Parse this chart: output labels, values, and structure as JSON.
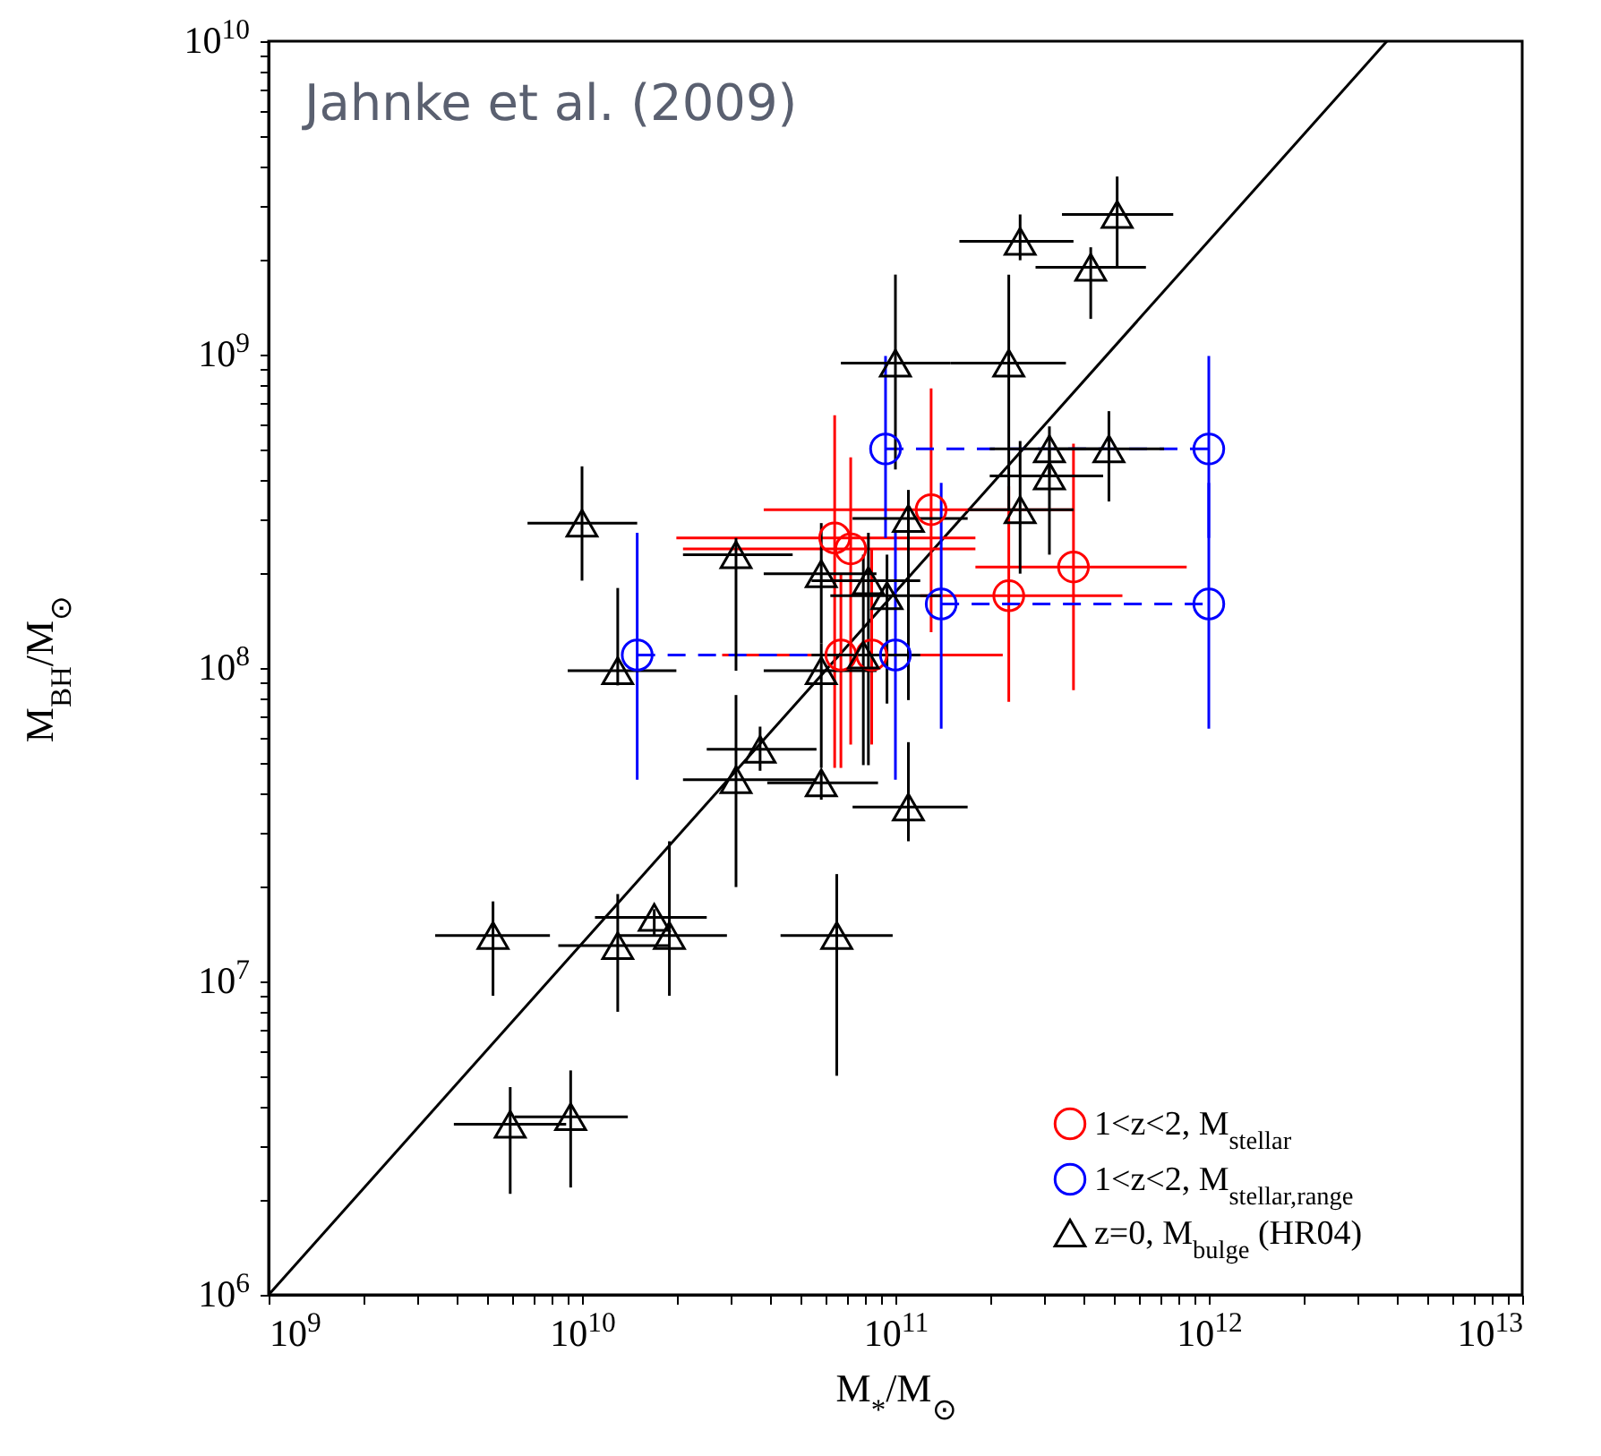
{
  "chart_data": {
    "type": "scatter",
    "annotations": [
      "Jahnke et al. (2009)"
    ],
    "xlabel": "M$_{*}$/M$_{⊙}$",
    "ylabel": "M$_{BH}$/M$_{⊙}$",
    "log": "xy",
    "xlim": [
      1000000000.0,
      10000000000000.0
    ],
    "ylim": [
      1000000.0,
      10000000000.0
    ],
    "xticks": [
      {
        "value": 1000000000.0,
        "label": "10$^{9}$"
      },
      {
        "value": 2000000000.0,
        "label": null
      },
      {
        "value": 3000000000.0,
        "label": null
      },
      {
        "value": 4000000000.0,
        "label": null
      },
      {
        "value": 5000000000.0,
        "label": null
      },
      {
        "value": 6000000000.0,
        "label": null
      },
      {
        "value": 7000000000.0,
        "label": null
      },
      {
        "value": 8000000000.0,
        "label": null
      },
      {
        "value": 9000000000.0,
        "label": null
      },
      {
        "value": 10000000000.0,
        "label": "10$^{10}$"
      },
      {
        "value": 20000000000.0,
        "label": null
      },
      {
        "value": 30000000000.0,
        "label": null
      },
      {
        "value": 40000000000.0,
        "label": null
      },
      {
        "value": 50000000000.0,
        "label": null
      },
      {
        "value": 60000000000.0,
        "label": null
      },
      {
        "value": 70000000000.0,
        "label": null
      },
      {
        "value": 80000000000.0,
        "label": null
      },
      {
        "value": 90000000000.0,
        "label": null
      },
      {
        "value": 100000000000.0,
        "label": "10$^{11}$"
      },
      {
        "value": 200000000000.0,
        "label": null
      },
      {
        "value": 300000000000.0,
        "label": null
      },
      {
        "value": 400000000000.0,
        "label": null
      },
      {
        "value": 500000000000.0,
        "label": null
      },
      {
        "value": 600000000000.0,
        "label": null
      },
      {
        "value": 700000000000.0,
        "label": null
      },
      {
        "value": 800000000000.0,
        "label": null
      },
      {
        "value": 900000000000.0,
        "label": null
      },
      {
        "value": 1000000000000.0,
        "label": "10$^{12}$"
      },
      {
        "value": 2000000000000.0,
        "label": null
      },
      {
        "value": 3000000000000.0,
        "label": null
      },
      {
        "value": 4000000000000.0,
        "label": null
      },
      {
        "value": 5000000000000.0,
        "label": null
      },
      {
        "value": 6000000000000.0,
        "label": null
      },
      {
        "value": 7000000000000.0,
        "label": null
      },
      {
        "value": 8000000000000.0,
        "label": null
      },
      {
        "value": 9000000000000.0,
        "label": null
      },
      {
        "value": 10000000000000.0,
        "label": "10$^{13}$"
      }
    ],
    "yticks": [
      {
        "value": 1000000.0,
        "label": "10$^{6}$"
      },
      {
        "value": 2000000.0,
        "label": null
      },
      {
        "value": 3000000.0,
        "label": null
      },
      {
        "value": 4000000.0,
        "label": null
      },
      {
        "value": 5000000.0,
        "label": null
      },
      {
        "value": 6000000.0,
        "label": null
      },
      {
        "value": 7000000.0,
        "label": null
      },
      {
        "value": 8000000.0,
        "label": null
      },
      {
        "value": 9000000.0,
        "label": null
      },
      {
        "value": 10000000.0,
        "label": "10$^{7}$"
      },
      {
        "value": 20000000.0,
        "label": null
      },
      {
        "value": 30000000.0,
        "label": null
      },
      {
        "value": 40000000.0,
        "label": null
      },
      {
        "value": 50000000.0,
        "label": null
      },
      {
        "value": 60000000.0,
        "label": null
      },
      {
        "value": 70000000.0,
        "label": null
      },
      {
        "value": 80000000.0,
        "label": null
      },
      {
        "value": 90000000.0,
        "label": null
      },
      {
        "value": 100000000.0,
        "label": "10$^{8}$"
      },
      {
        "value": 200000000.0,
        "label": null
      },
      {
        "value": 300000000.0,
        "label": null
      },
      {
        "value": 400000000.0,
        "label": null
      },
      {
        "value": 500000000.0,
        "label": null
      },
      {
        "value": 600000000.0,
        "label": null
      },
      {
        "value": 700000000.0,
        "label": null
      },
      {
        "value": 800000000.0,
        "label": null
      },
      {
        "value": 900000000.0,
        "label": null
      },
      {
        "value": 1000000000.0,
        "label": "10$^{9}$"
      },
      {
        "value": 2000000000.0,
        "label": null
      },
      {
        "value": 3000000000.0,
        "label": null
      },
      {
        "value": 4000000000.0,
        "label": null
      },
      {
        "value": 5000000000.0,
        "label": null
      },
      {
        "value": 6000000000.0,
        "label": null
      },
      {
        "value": 7000000000.0,
        "label": null
      },
      {
        "value": 8000000000.0,
        "label": null
      },
      {
        "value": 9000000000.0,
        "label": null
      },
      {
        "value": 10000000000.0,
        "label": "10$^{10}$"
      }
    ],
    "legend": "bottom right",
    "grid": false,
    "series": [
      {
        "type": "line",
        "color": "#000000",
        "marker": "none",
        "line_style": "solid",
        "x": [
          1000000000.0,
          3700000000000.0
        ],
        "values": [
          1000000.0,
          10000000000.0
        ]
      },
      {
        "name": "1<z<2, M$_{stellar}$",
        "color": "#ff0000",
        "marker": "circle",
        "x": [
          130000000000.0,
          64000000000.0,
          72000000000.0,
          370000000000.0,
          230000000000.0,
          84000000000.0,
          67000000000.0
        ],
        "values": [
          320000000.0,
          260000000.0,
          240000000.0,
          210000000.0,
          170000000.0,
          110000000.0,
          110000000.0
        ],
        "errors": [
          [
            130000000.0,
            780000000.0
          ],
          [
            48000000.0,
            640000000.0
          ],
          [
            57000000.0,
            470000000.0
          ],
          [
            85000000.0,
            520000000.0
          ],
          [
            78000000.0,
            380000000.0
          ],
          [
            57000000.0,
            240000000.0
          ],
          [
            48000000.0,
            200000000.0
          ]
        ],
        "xerrors": [
          [
            38000000000.0,
            370000000000.0
          ],
          [
            20000000000.0,
            180000000000.0
          ],
          [
            21000000000.0,
            180000000000.0
          ],
          [
            180000000000.0,
            850000000000.0
          ],
          [
            120000000000.0,
            530000000000.0
          ],
          [
            30000000000.0,
            220000000000.0
          ],
          [
            28000000000.0,
            170000000000.0
          ]
        ]
      },
      {
        "type": "line",
        "name": "1<z<2, M$_{stellar,range}$",
        "color": "#0000ff",
        "marker": "circle",
        "line_style": "dashed",
        "x": [
          93000000000.0,
          1000000000000.0,
          null,
          140000000000.0,
          1000000000000.0,
          null,
          15000000000.0,
          100000000000.0
        ],
        "values": [
          500000000.0,
          500000000.0,
          null,
          160000000.0,
          160000000.0,
          null,
          110000000.0,
          110000000.0
        ],
        "errors": [
          [
            260000000.0,
            990000000.0
          ],
          [
            260000000.0,
            990000000.0
          ],
          null,
          [
            64000000.0,
            390000000.0
          ],
          [
            64000000.0,
            390000000.0
          ],
          null,
          [
            44000000.0,
            270000000.0
          ],
          [
            44000000.0,
            270000000.0
          ]
        ]
      },
      {
        "name": "z=0, M$_{bulge}$ (HR04)",
        "color": "#000000",
        "marker": "triangle",
        "x": [
          510000000000.0,
          250000000000.0,
          420000000000.0,
          100000000000.0,
          230000000000.0,
          310000000000.0,
          480000000000.0,
          310000000000.0,
          250000000000.0,
          110000000000.0,
          10000000000.0,
          31000000000.0,
          58000000000.0,
          82000000000.0,
          94000000000.0,
          13000000000.0,
          58000000000.0,
          79000000000.0,
          37000000000.0,
          31000000000.0,
          58000000000.0,
          110000000000.0,
          5200000000.0,
          13000000000.0,
          17000000000.0,
          19000000000.0,
          65000000000.0,
          5900000000.0,
          9200000000.0
        ],
        "values": [
          2800000000.0,
          2300000000.0,
          1900000000.0,
          940000000.0,
          940000000.0,
          500000000.0,
          500000000.0,
          410000000.0,
          320000000.0,
          300000000.0,
          290000000.0,
          230000000.0,
          200000000.0,
          190000000.0,
          170000000.0,
          98000000.0,
          98000000.0,
          110000000.0,
          55000000.0,
          44000000.0,
          43000000.0,
          36000000.0,
          14000000.0,
          13000000.0,
          16000000.0,
          14000000.0,
          14000000.0,
          3500000.0,
          3700000.0
        ],
        "errors": [
          [
            1900000000.0,
            3700000000.0
          ],
          [
            2000000000.0,
            2800000000.0
          ],
          [
            1300000000.0,
            2200000000.0
          ],
          [
            430000000.0,
            1800000000.0
          ],
          [
            320000000.0,
            1800000000.0
          ],
          [
            410000000.0,
            590000000.0
          ],
          [
            340000000.0,
            660000000.0
          ],
          [
            230000000.0,
            500000000.0
          ],
          [
            200000000.0,
            530000000.0
          ],
          [
            79000000.0,
            370000000.0
          ],
          [
            190000000.0,
            440000000.0
          ],
          [
            98000000.0,
            260000000.0
          ],
          [
            120000000.0,
            290000000.0
          ],
          [
            49000000.0,
            270000000.0
          ],
          [
            77000000.0,
            230000000.0
          ],
          [
            88000000.0,
            180000000.0
          ],
          [
            48000000.0,
            120000000.0
          ],
          [
            49000000.0,
            230000000.0
          ],
          [
            47000000.0,
            65000000.0
          ],
          [
            20000000.0,
            82000000.0
          ],
          [
            38000000.0,
            47000000.0
          ],
          [
            28000000.0,
            58000000.0
          ],
          [
            9000000.0,
            18000000.0
          ],
          [
            8000000.0,
            19000000.0
          ],
          [
            14000000.0,
            17000000.0
          ],
          [
            9000000.0,
            28000000.0
          ],
          [
            5000000.0,
            22000000.0
          ],
          [
            2100000.0,
            4600000.0
          ],
          [
            2200000.0,
            5200000.0
          ]
        ],
        "xerrors": [
          [
            340000000000.0,
            770000000000.0
          ],
          [
            160000000000.0,
            370000000000.0
          ],
          [
            280000000000.0,
            630000000000.0
          ],
          [
            67000000000.0,
            150000000000.0
          ],
          [
            150000000000.0,
            350000000000.0
          ],
          [
            200000000000.0,
            460000000000.0
          ],
          [
            320000000000.0,
            720000000000.0
          ],
          [
            200000000000.0,
            460000000000.0
          ],
          [
            170000000000.0,
            370000000000.0
          ],
          [
            73000000000.0,
            170000000000.0
          ],
          [
            6700000000.0,
            15000000000.0
          ],
          [
            21000000000.0,
            47000000000.0
          ],
          [
            38000000000.0,
            87000000000.0
          ],
          [
            54000000000.0,
            120000000000.0
          ],
          [
            62000000000.0,
            140000000000.0
          ],
          [
            9000000000.0,
            20000000000.0
          ],
          [
            38000000000.0,
            87000000000.0
          ],
          [
            54000000000.0,
            120000000000.0
          ],
          [
            25000000000.0,
            56000000000.0
          ],
          [
            21000000000.0,
            56000000000.0
          ],
          [
            39000000000.0,
            88000000000.0
          ],
          [
            73000000000.0,
            170000000000.0
          ],
          [
            3400000000.0,
            7900000000.0
          ],
          [
            8400000000.0,
            19000000000.0
          ],
          [
            11000000000.0,
            25000000000.0
          ],
          [
            13000000000.0,
            29000000000.0
          ],
          [
            43000000000.0,
            98000000000.0
          ],
          [
            3900000000.0,
            8900000000.0
          ],
          [
            6100000000.0,
            14000000000.0
          ]
        ]
      }
    ]
  }
}
